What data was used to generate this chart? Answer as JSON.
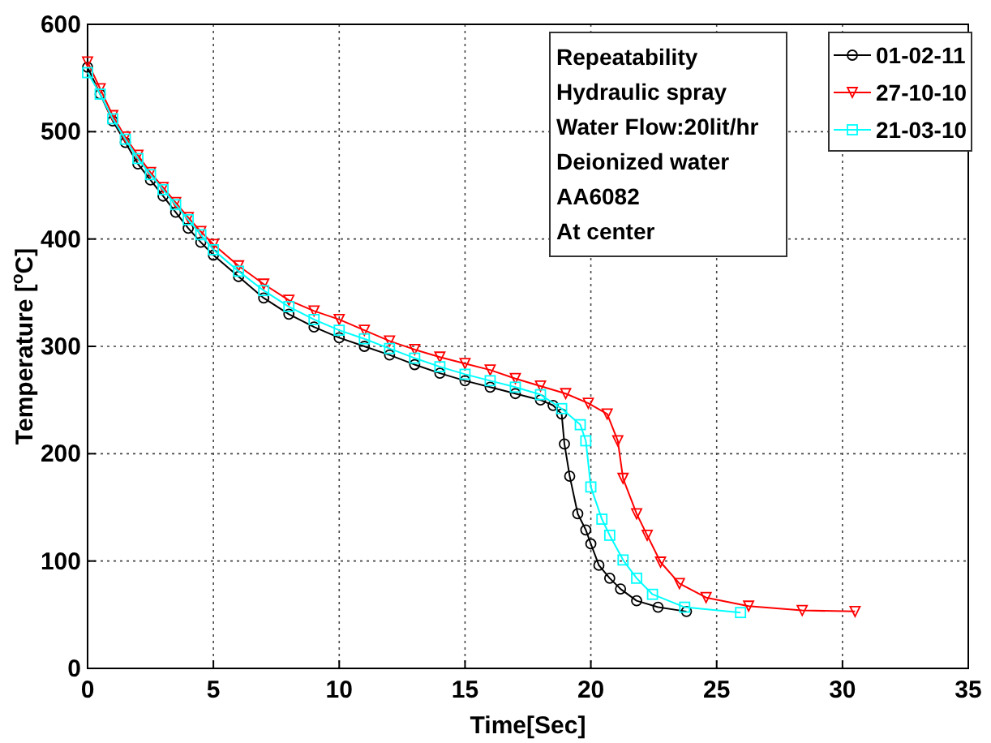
{
  "chart_data": {
    "type": "line",
    "xlabel": "Time[Sec]",
    "ylabel": "Temperature [$^{o}$C]",
    "xlim": [
      0,
      35
    ],
    "ylim": [
      0,
      600
    ],
    "xticks": [
      0,
      5,
      10,
      15,
      20,
      25,
      30,
      35
    ],
    "yticks": [
      0,
      100,
      200,
      300,
      400,
      500,
      600
    ],
    "grid": true,
    "legend": "top right",
    "line_style": "solid",
    "annotations": [
      "Repeatability",
      "Hydraulic spray",
      "Water Flow:20lit/hr",
      "Deionized water",
      "AA6082",
      "At center"
    ],
    "series": [
      {
        "name": "01-02-11",
        "color": "#000000",
        "marker": "circle",
        "x": [
          0,
          0.5,
          1,
          1.5,
          2,
          2.5,
          3,
          3.5,
          4,
          4.5,
          5,
          6,
          7,
          8,
          9,
          10,
          11,
          12,
          13,
          14,
          15,
          16,
          17,
          18,
          18.5,
          18.84,
          18.95,
          19.16,
          19.48,
          19.8,
          20,
          20.32,
          20.75,
          21.18,
          21.82,
          22.67,
          23.8
        ],
        "values": [
          560,
          535,
          510,
          490,
          470,
          455,
          440,
          425,
          410,
          397,
          385,
          365,
          345,
          330,
          318,
          308,
          300,
          292,
          283,
          275,
          268,
          262,
          256,
          250,
          245,
          237,
          209,
          179,
          144,
          129,
          116,
          96,
          84,
          74,
          63,
          57,
          53
        ]
      },
      {
        "name": "27-10-10",
        "color": "#ff0000",
        "marker": "triangle",
        "x": [
          0,
          0.5,
          1,
          1.5,
          2,
          2.5,
          3,
          3.5,
          4,
          4.5,
          5,
          6,
          7,
          8,
          9,
          10,
          11,
          12,
          13,
          14,
          15,
          16,
          17,
          18,
          19,
          19.9,
          20.65,
          21.07,
          21.28,
          21.82,
          22.24,
          22.77,
          23.52,
          24.58,
          26.27,
          28.4,
          30.5
        ],
        "values": [
          565,
          540,
          515,
          495,
          478,
          462,
          448,
          434,
          420,
          407,
          395,
          375,
          358,
          343,
          333,
          325,
          315,
          305,
          297,
          290,
          284,
          278,
          270,
          263,
          256,
          247,
          237,
          212,
          177,
          144,
          124,
          99,
          79,
          66,
          58,
          54,
          53
        ]
      },
      {
        "name": "21-03-10",
        "color": "#00ffff",
        "marker": "square",
        "x": [
          0,
          0.5,
          1,
          1.5,
          2,
          2.5,
          3,
          3.5,
          4,
          4.5,
          5,
          6,
          7,
          8,
          9,
          10,
          11,
          12,
          13,
          14,
          15,
          16,
          17,
          18,
          18.84,
          19.58,
          19.8,
          20,
          20.44,
          20.75,
          21.28,
          21.82,
          22.45,
          23.73,
          25.95
        ],
        "values": [
          555,
          535,
          512,
          493,
          475,
          460,
          446,
          432,
          418,
          404,
          390,
          370,
          352,
          337,
          325,
          315,
          307,
          298,
          289,
          281,
          274,
          268,
          262,
          255,
          242,
          227,
          212,
          169,
          139,
          124,
          101,
          84,
          69,
          57,
          52
        ]
      }
    ]
  }
}
